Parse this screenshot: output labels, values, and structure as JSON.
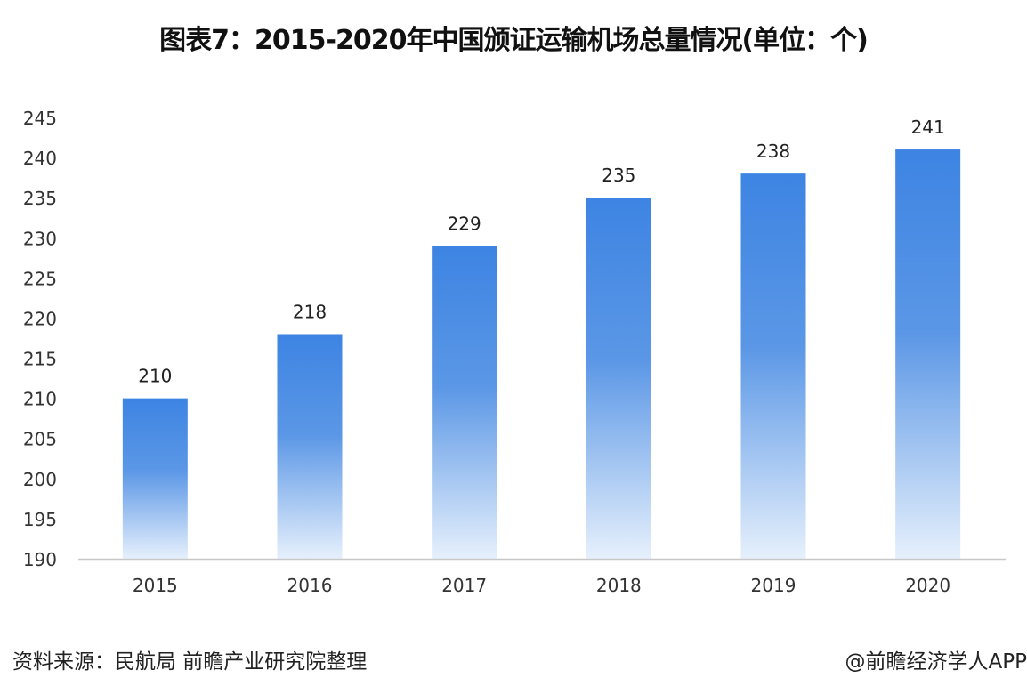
{
  "chart_data": {
    "type": "bar",
    "title": "图表7：2015-2020年中国颁证运输机场总量情况(单位：个)",
    "categories": [
      "2015",
      "2016",
      "2017",
      "2018",
      "2019",
      "2020"
    ],
    "values": [
      210,
      218,
      229,
      235,
      238,
      241
    ],
    "xlabel": "",
    "ylabel": "",
    "ylim": [
      190,
      245
    ],
    "yticks": [
      190,
      195,
      200,
      205,
      210,
      215,
      220,
      225,
      230,
      235,
      240,
      245
    ],
    "grid": false,
    "data_labels": true,
    "colors": {
      "bar_top": "#3d84e3",
      "bar_bottom": "#e6f0fc",
      "axis": "#c8c8c8",
      "text": "#333333"
    }
  },
  "footer": {
    "source": "资料来源：民航局 前瞻产业研究院整理",
    "credit": "@前瞻经济学人APP"
  }
}
